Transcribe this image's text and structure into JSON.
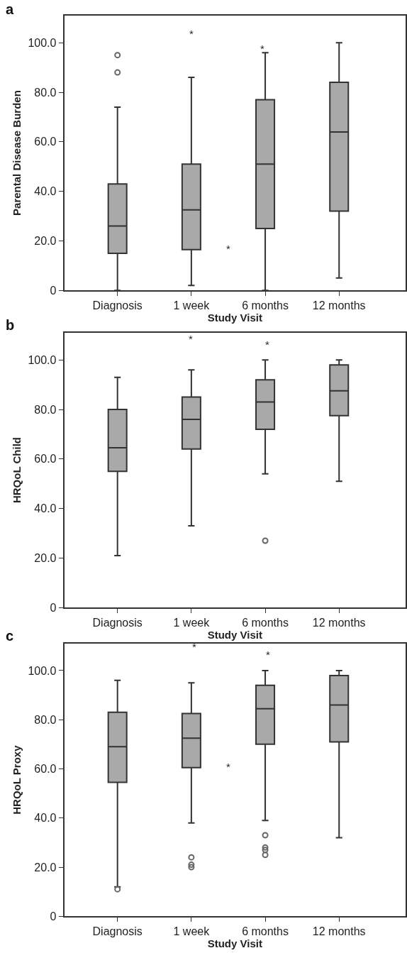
{
  "chart_data": [
    {
      "type": "box",
      "xlabel": "Study Visit",
      "ylabel": "Parental Disease Burden",
      "categories": [
        "Diagnosis",
        "1 week",
        "6 months",
        "12 months"
      ],
      "color": "#a9a9a9",
      "ylim": [
        0,
        111
      ],
      "yticks": [
        0,
        {
          "value": 20,
          "label": "20.0"
        },
        {
          "value": 40,
          "label": "40.0"
        },
        {
          "value": 60,
          "label": "60.0"
        },
        {
          "value": 80,
          "label": "80.0"
        },
        {
          "value": 100,
          "label": "100.0"
        }
      ],
      "grid": false,
      "legend": false,
      "annotations": [
        "a",
        "*",
        "*",
        "*"
      ],
      "boxes": [
        {
          "low": 0,
          "q1": 15,
          "median": 26,
          "q3": 43,
          "high": 74,
          "outliers": [
            88,
            95
          ]
        },
        {
          "low": 2,
          "q1": 16.5,
          "median": 32.5,
          "q3": 51,
          "high": 86
        },
        {
          "low": 0,
          "q1": 25,
          "median": 51,
          "q3": 77,
          "high": 96
        },
        {
          "low": 5,
          "q1": 32,
          "median": 64,
          "q3": 84,
          "high": 100
        }
      ]
    },
    {
      "type": "box",
      "xlabel": "Study Visit",
      "ylabel": "HRQoL Child",
      "categories": [
        "Diagnosis",
        "1 week",
        "6 months",
        "12 months"
      ],
      "color": "#a9a9a9",
      "ylim": [
        0,
        111
      ],
      "yticks": [
        0,
        {
          "value": 20,
          "label": "20.0"
        },
        {
          "value": 40,
          "label": "40.0"
        },
        {
          "value": 60,
          "label": "60.0"
        },
        {
          "value": 80,
          "label": "80.0"
        },
        {
          "value": 100,
          "label": "100.0"
        }
      ],
      "grid": false,
      "legend": false,
      "annotations": [
        "b",
        "*",
        "*"
      ],
      "boxes": [
        {
          "low": 21,
          "q1": 55,
          "median": 64.5,
          "q3": 80,
          "high": 93
        },
        {
          "low": 33,
          "q1": 64,
          "median": 76,
          "q3": 85,
          "high": 96
        },
        {
          "low": 54,
          "q1": 72,
          "median": 83,
          "q3": 92,
          "high": 100,
          "outliers": [
            27
          ]
        },
        {
          "low": 51,
          "q1": 77.5,
          "median": 87.5,
          "q3": 98,
          "high": 100
        }
      ]
    },
    {
      "type": "box",
      "xlabel": "Study Visit",
      "ylabel": "HRQoL Proxy",
      "categories": [
        "Diagnosis",
        "1 week",
        "6 months",
        "12 months"
      ],
      "color": "#a9a9a9",
      "ylim": [
        0,
        111
      ],
      "yticks": [
        0,
        {
          "value": 20,
          "label": "20.0"
        },
        {
          "value": 40,
          "label": "40.0"
        },
        {
          "value": 60,
          "label": "60.0"
        },
        {
          "value": 80,
          "label": "80.0"
        },
        {
          "value": 100,
          "label": "100.0"
        }
      ],
      "grid": false,
      "legend": false,
      "annotations": [
        "c",
        "*",
        "*",
        "*"
      ],
      "boxes": [
        {
          "low": 12,
          "q1": 54.5,
          "median": 69,
          "q3": 83,
          "high": 96,
          "outliers": [
            11
          ]
        },
        {
          "low": 38,
          "q1": 60.5,
          "median": 72.5,
          "q3": 82.5,
          "high": 95,
          "outliers": [
            24,
            21,
            20
          ]
        },
        {
          "low": 39,
          "q1": 70,
          "median": 84.5,
          "q3": 94,
          "high": 100,
          "outliers": [
            33,
            28,
            27,
            25
          ]
        },
        {
          "low": 32,
          "q1": 71,
          "median": 86,
          "q3": 98,
          "high": 100
        }
      ]
    }
  ]
}
